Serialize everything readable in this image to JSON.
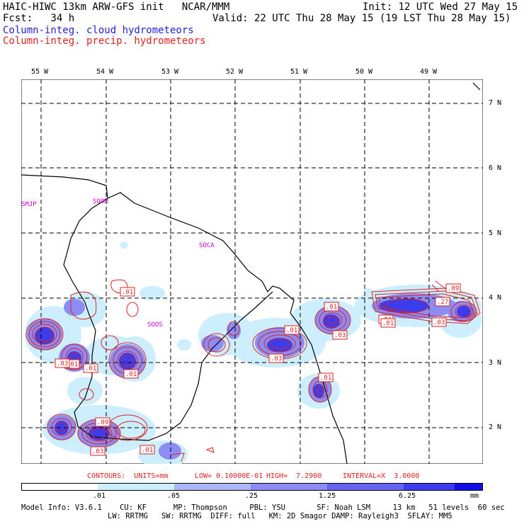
{
  "header": {
    "line1_left": "HAIC-HIWC 13km ARW-GFS init   NCAR/MMM",
    "line1_right": "Init: 12 UTC Wed 27 May 15",
    "line2_left": "Fcst:   34 h",
    "line2_right": "Valid: 22 UTC Thu 28 May 15 (19 LST Thu 28 May 15)",
    "field1": "Column-integ. cloud hydrometeors",
    "field2": "Column-integ. precip. hydrometeors"
  },
  "axes": {
    "lon_labels": [
      "55 W",
      "54 W",
      "53 W",
      "52 W",
      "51 W",
      "50 W",
      "49 W"
    ],
    "lat_labels": [
      "7 N",
      "6 N",
      "5 N",
      "4 N",
      "3 N",
      "2 N"
    ]
  },
  "places": [
    "SMJP",
    "SOOM",
    "SOCA",
    "SOOS"
  ],
  "contour_labels": [
    ".01",
    ".01",
    ".03",
    ".01",
    ".01",
    ".01",
    ".03",
    ".01",
    ".01",
    ".03",
    ".01",
    ".09",
    ".03",
    ".01",
    ".09",
    ".27",
    ".03",
    ".01"
  ],
  "contour_info": {
    "contours": "CONTOURS:  UNITS=mm",
    "low": "LOW= 0.10000E-01",
    "high": "HIGH=  7.2900",
    "interval": "INTERVAL=X  3.0000"
  },
  "legend": {
    "labels": [
      ".01",
      ".05",
      ".25",
      "1.25",
      "6.25",
      "mm"
    ],
    "colors": [
      "#ffffff",
      "#cceeff",
      "#aab8f8",
      "#8c8cf4",
      "#6464f0",
      "#3c3cec",
      "#1010e6"
    ]
  },
  "footer": {
    "line1": "Model Info: V3.6.1    CU: KF      MP: Thompson     PBL: YSU       SF: Noah LSM     13 km   51 levels  60 sec",
    "line2": "LW: RRTMG   SW: RRTMG  DIFF: full   KM: 2D Smagor DAMP: Rayleigh3  SFLAY: MM5"
  },
  "colors": {
    "cloud": "#2222dd",
    "precip": "#dd2222",
    "magenta": "#cc00cc"
  }
}
